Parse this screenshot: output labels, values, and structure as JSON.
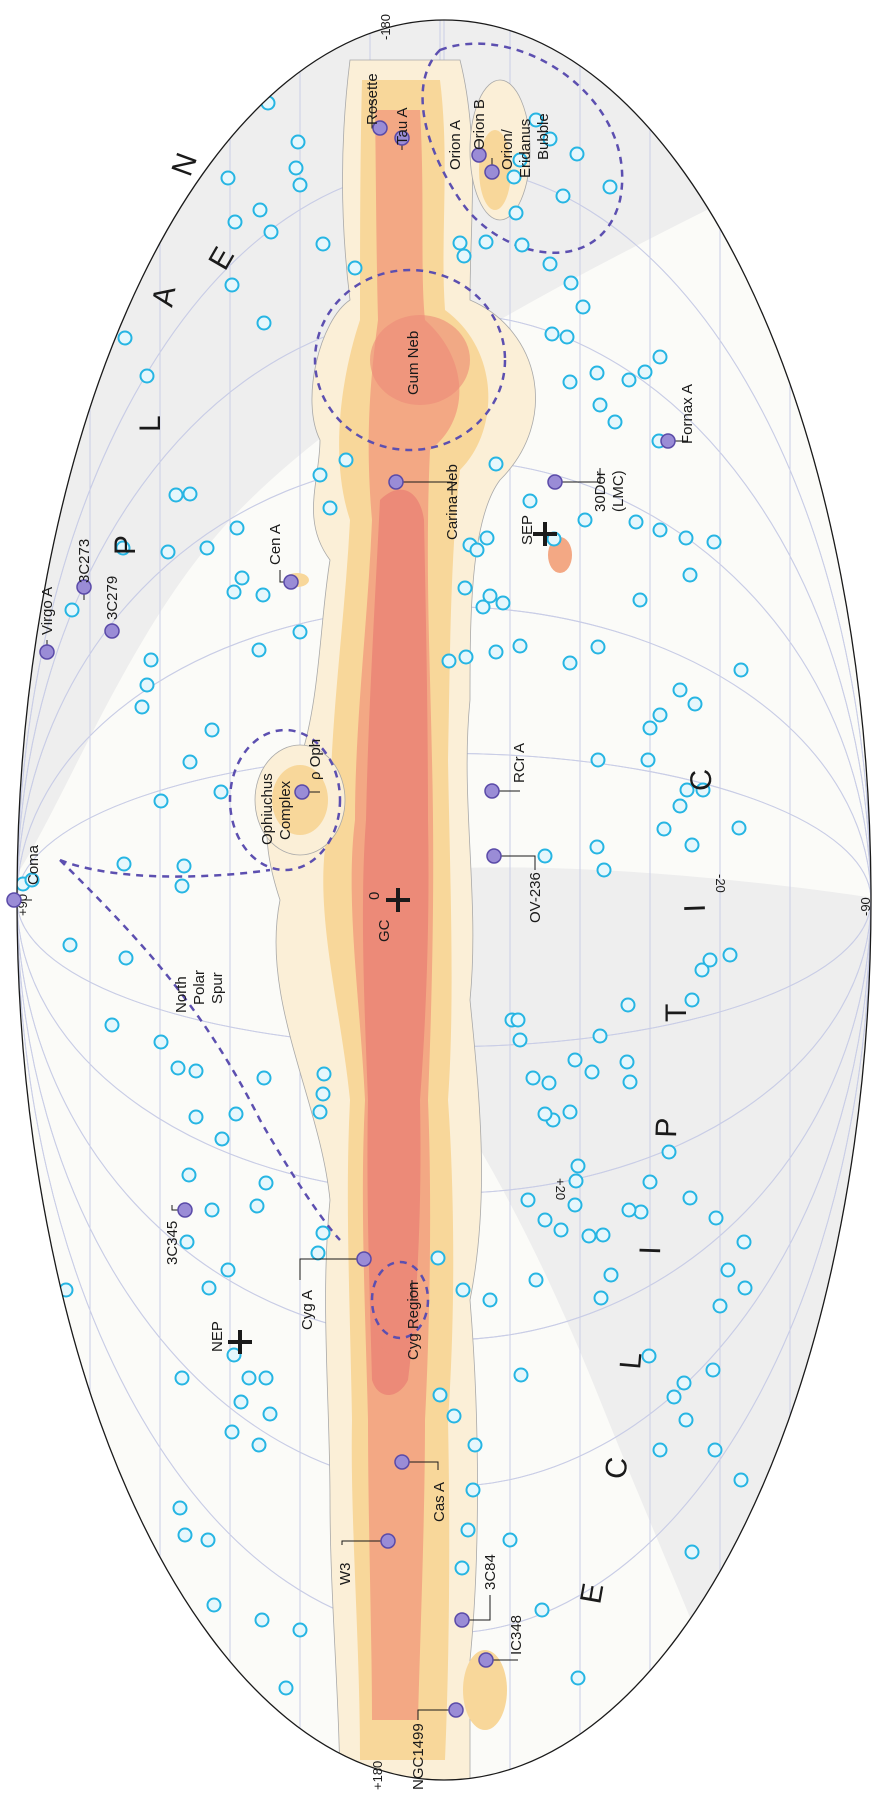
{
  "colors": {
    "background": "#ffffff",
    "sky": "#fbfbf8",
    "band": "#eeeeee",
    "grid": "#c9cde6",
    "outline": "#1a1a1a",
    "emission_outer": "#fbefd7",
    "emission_mid": "#f8d79a",
    "emission_inner": "#f3a884",
    "emission_core": "#ec8a78",
    "source_fill": "#9a8cd6",
    "source_stroke": "#5a4aa8",
    "xray_fill": "#e6f7fc",
    "xray_stroke": "#26b5e3",
    "dashed": "#5c4fb0"
  },
  "axis_labels": {
    "lon_plus180": "+180",
    "lon_minus180": "-180",
    "lat_plus90": "+90",
    "lat_minus90": "-90",
    "ecl_plus20": "+20",
    "ecl_minus20": "-20"
  },
  "plane_letters": [
    "P",
    "L",
    "A",
    "N",
    "E"
  ],
  "ecliptic_letters": [
    "E",
    "C",
    "L",
    "I",
    "P",
    "T",
    "I",
    "C"
  ],
  "markers": {
    "gc": "GC",
    "gc_zero": "0",
    "nep": "NEP",
    "sep": "SEP"
  },
  "sources": [
    {
      "id": "virgo-a",
      "name": "Virgo A"
    },
    {
      "id": "3c273",
      "name": "3C273"
    },
    {
      "id": "3c279",
      "name": "3C279"
    },
    {
      "id": "cen-a",
      "name": "Cen A"
    },
    {
      "id": "rho-oph",
      "name": "ρ Oph"
    },
    {
      "id": "coma",
      "name": "Coma"
    },
    {
      "id": "3c345",
      "name": "3C345"
    },
    {
      "id": "cyg-a",
      "name": "Cyg A"
    },
    {
      "id": "cas-a",
      "name": "Cas A"
    },
    {
      "id": "w3",
      "name": "W3"
    },
    {
      "id": "3c84",
      "name": "3C84"
    },
    {
      "id": "ic348",
      "name": "IC348"
    },
    {
      "id": "ngc1499",
      "name": "NGC1499"
    },
    {
      "id": "tau-a",
      "name": "Tau A"
    },
    {
      "id": "rosette",
      "name": "Rosette"
    },
    {
      "id": "orion-a",
      "name": "Orion A"
    },
    {
      "id": "orion-b",
      "name": "Orion B"
    },
    {
      "id": "carina-neb",
      "name": "Carina Neb"
    },
    {
      "id": "rcr-a",
      "name": "RCr A"
    },
    {
      "id": "ov-236",
      "name": "OV-236"
    },
    {
      "id": "30dor",
      "name": "30Dor"
    },
    {
      "id": "lmc",
      "name": "(LMC)"
    },
    {
      "id": "fornax-a",
      "name": "Fornax A"
    }
  ],
  "regions": [
    {
      "id": "gum-neb",
      "name": "Gum Neb"
    },
    {
      "id": "cyg-region",
      "name": "Cyg Region"
    },
    {
      "id": "ophiuchus",
      "name": [
        "Ophiuchus",
        "Complex"
      ]
    },
    {
      "id": "north-polar-spur",
      "name": [
        "North",
        "Polar",
        "Spur"
      ]
    },
    {
      "id": "orion-eridanus",
      "name": [
        "Orion/",
        "Eridanus",
        "Bubble"
      ]
    }
  ]
}
